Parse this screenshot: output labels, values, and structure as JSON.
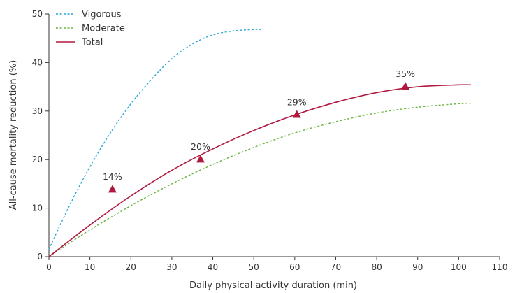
{
  "chart_data": {
    "type": "line",
    "title": "",
    "xlabel": "Daily physical activity duration (min)",
    "ylabel": "All-cause mortality reduction (%)",
    "xlim": [
      0,
      110
    ],
    "ylim": [
      0,
      50
    ],
    "xticks": [
      0,
      10,
      20,
      30,
      40,
      50,
      60,
      70,
      80,
      90,
      100,
      110
    ],
    "yticks": [
      0,
      10,
      20,
      30,
      40,
      50
    ],
    "grid": false,
    "legend_position": "top-left",
    "series": [
      {
        "name": "Vigorous",
        "style": "dotted",
        "color": "#2aa7d6",
        "x": [
          0,
          5,
          10,
          15,
          20,
          25,
          30,
          35,
          40,
          45,
          50,
          52
        ],
        "y": [
          1.5,
          10.5,
          18.5,
          25.5,
          31.5,
          36.5,
          40.8,
          43.8,
          45.7,
          46.5,
          46.8,
          46.8
        ]
      },
      {
        "name": "Moderate",
        "style": "dotted",
        "color": "#6cb33f",
        "x": [
          0,
          10,
          20,
          30,
          40,
          50,
          60,
          70,
          80,
          90,
          100,
          103
        ],
        "y": [
          0,
          5.5,
          10.5,
          15.0,
          19.0,
          22.5,
          25.5,
          27.8,
          29.6,
          30.8,
          31.5,
          31.6
        ]
      },
      {
        "name": "Total",
        "style": "solid",
        "color": "#b0193f",
        "x": [
          0,
          10,
          20,
          30,
          40,
          50,
          60,
          70,
          80,
          90,
          100,
          103
        ],
        "y": [
          0,
          6.5,
          12.5,
          17.8,
          22.2,
          26.0,
          29.2,
          31.8,
          33.8,
          35.0,
          35.4,
          35.4
        ]
      }
    ],
    "markers": {
      "shape": "triangle",
      "color": "#b0193f",
      "points": [
        {
          "x": 15.5,
          "y": 13.8,
          "label": "14%"
        },
        {
          "x": 37,
          "y": 20.0,
          "label": "20%"
        },
        {
          "x": 60.5,
          "y": 29.2,
          "label": "29%"
        },
        {
          "x": 87,
          "y": 35.0,
          "label": "35%"
        }
      ]
    }
  }
}
